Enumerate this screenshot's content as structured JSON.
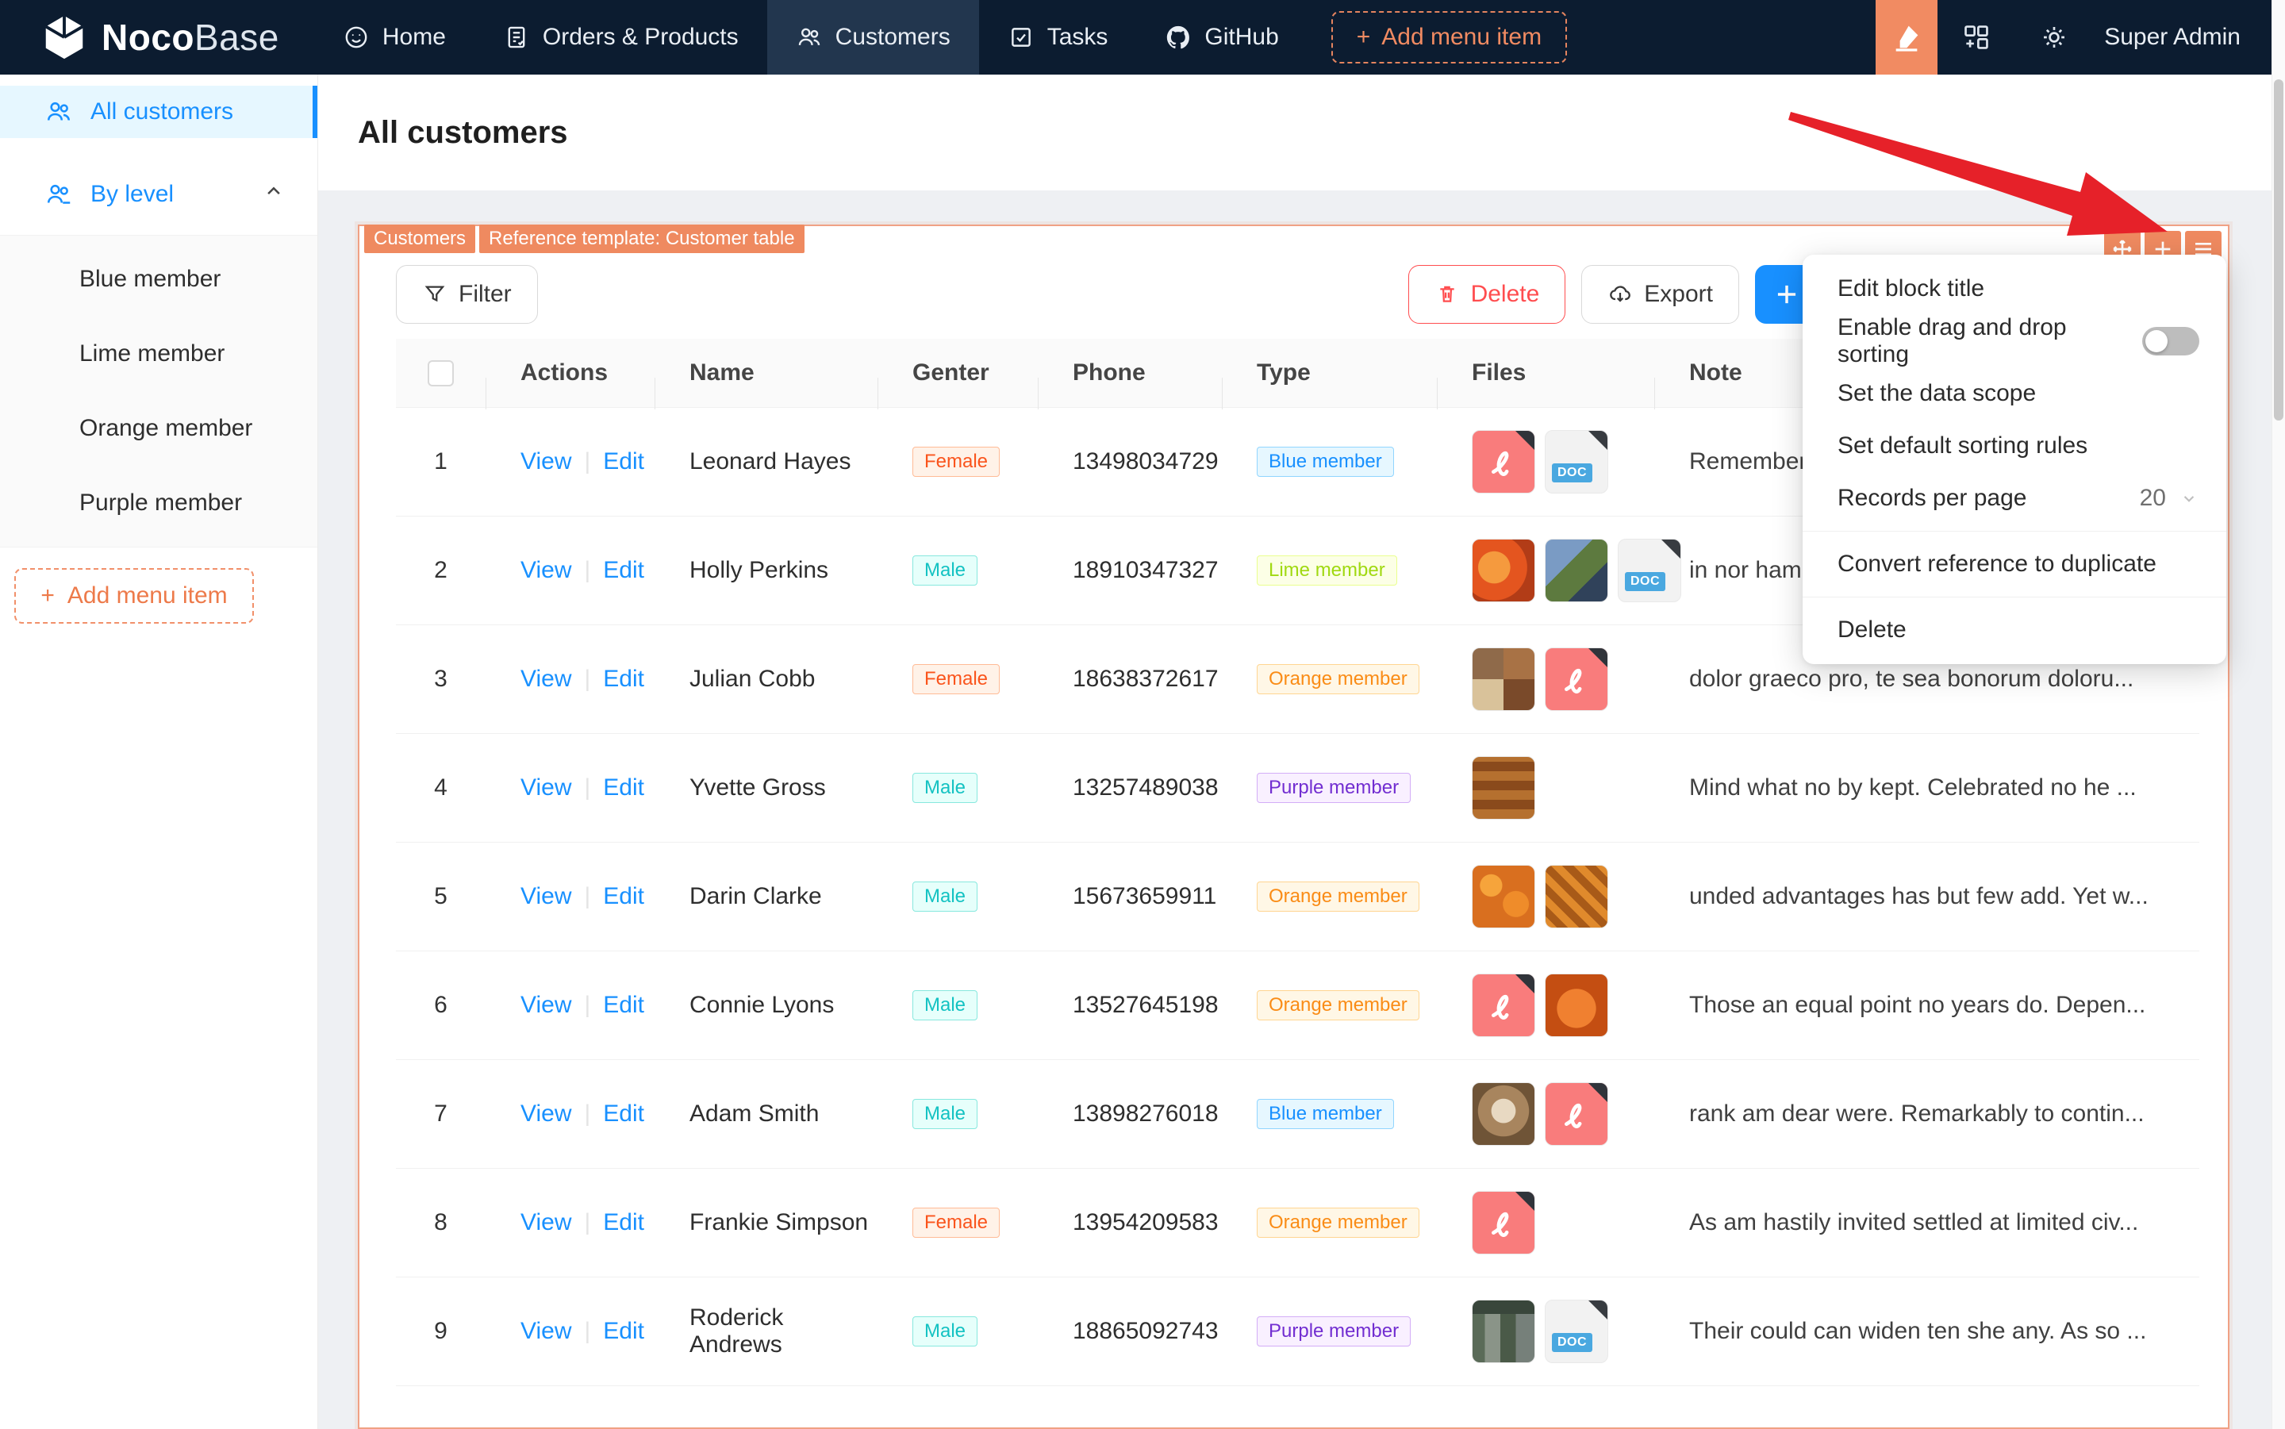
{
  "navbar": {
    "brand": {
      "bold": "Noco",
      "light": "Base"
    },
    "items": [
      {
        "label": "Home",
        "icon": "smiley-icon",
        "active": false
      },
      {
        "label": "Orders & Products",
        "icon": "orders-icon",
        "active": false
      },
      {
        "label": "Customers",
        "icon": "customers-icon",
        "active": true
      },
      {
        "label": "Tasks",
        "icon": "tasks-icon",
        "active": false
      },
      {
        "label": "GitHub",
        "icon": "github-icon",
        "active": false
      }
    ],
    "add_menu_item": "Add menu item",
    "user": "Super Admin"
  },
  "sidebar": {
    "all_customers": "All customers",
    "by_level": "By level",
    "level_items": [
      "Blue member",
      "Lime member",
      "Orange member",
      "Purple member"
    ],
    "add_menu_item": "Add menu item"
  },
  "page": {
    "title": "All customers"
  },
  "block": {
    "tag_collection": "Customers",
    "tag_template": "Reference template: Customer table",
    "filter_label": "Filter",
    "delete_label": "Delete",
    "export_label": "Export"
  },
  "context_menu": {
    "edit_block_title": "Edit block title",
    "enable_drag": "Enable drag and drop sorting",
    "set_data_scope": "Set the data scope",
    "set_sorting": "Set default sorting rules",
    "records_per_page": "Records per page",
    "records_value": "20",
    "convert": "Convert reference to duplicate",
    "delete": "Delete"
  },
  "table": {
    "headers": {
      "actions": "Actions",
      "name": "Name",
      "gender": "Genter",
      "phone": "Phone",
      "type": "Type",
      "files": "Files",
      "note": "Note"
    },
    "action_labels": {
      "view": "View",
      "edit": "Edit"
    },
    "file_labels": {
      "doc": "DOC"
    },
    "rows": [
      {
        "index": "1",
        "name": "Leonard Hayes",
        "gender": "Female",
        "gender_color": "volcano",
        "phone": "13498034729",
        "type": "Blue member",
        "type_color": "blue",
        "files": [
          "pdf",
          "doc"
        ],
        "note": "Remember"
      },
      {
        "index": "2",
        "name": "Holly Perkins",
        "gender": "Male",
        "gender_color": "cyan",
        "phone": "18910347327",
        "type": "Lime member",
        "type_color": "lime",
        "files": [
          "img-fruit1",
          "img-mixed",
          "doc"
        ],
        "note": "in nor ham"
      },
      {
        "index": "3",
        "name": "Julian Cobb",
        "gender": "Female",
        "gender_color": "volcano",
        "phone": "18638372617",
        "type": "Orange member",
        "type_color": "orange",
        "files": [
          "img-food1",
          "pdf"
        ],
        "note": "dolor graeco pro, te sea bonorum doloru..."
      },
      {
        "index": "4",
        "name": "Yvette Gross",
        "gender": "Male",
        "gender_color": "cyan",
        "phone": "13257489038",
        "type": "Purple member",
        "type_color": "purple",
        "files": [
          "img-trays"
        ],
        "note": "Mind what no by kept. Celebrated no he ..."
      },
      {
        "index": "5",
        "name": "Darin Clarke",
        "gender": "Male",
        "gender_color": "cyan",
        "phone": "15673659911",
        "type": "Orange member",
        "type_color": "orange",
        "files": [
          "img-oranges1",
          "img-oranges2"
        ],
        "note": "unded advantages has but few add. Yet w..."
      },
      {
        "index": "6",
        "name": "Connie Lyons",
        "gender": "Male",
        "gender_color": "cyan",
        "phone": "13527645198",
        "type": "Orange member",
        "type_color": "orange",
        "files": [
          "pdf",
          "img-fruit2"
        ],
        "note": "Those an equal point no years do. Depen..."
      },
      {
        "index": "7",
        "name": "Adam Smith",
        "gender": "Male",
        "gender_color": "cyan",
        "phone": "13898276018",
        "type": "Blue member",
        "type_color": "blue",
        "files": [
          "img-latte",
          "pdf"
        ],
        "note": "rank am dear were. Remarkably to contin..."
      },
      {
        "index": "8",
        "name": "Frankie Simpson",
        "gender": "Female",
        "gender_color": "volcano",
        "phone": "13954209583",
        "type": "Orange member",
        "type_color": "orange",
        "files": [
          "pdf"
        ],
        "note": "As am hastily invited settled at limited civ..."
      },
      {
        "index": "9",
        "name": "Roderick Andrews",
        "gender": "Male",
        "gender_color": "cyan",
        "phone": "18865092743",
        "type": "Purple member",
        "type_color": "purple",
        "files": [
          "img-store",
          "doc"
        ],
        "note": "Their could can widen ten she any. As so ..."
      }
    ]
  },
  "colors": {
    "accent_orange": "#f18b62",
    "primary_blue": "#1890ff",
    "danger_red": "#ff4d4f",
    "navbar_bg": "#0c1c30"
  }
}
